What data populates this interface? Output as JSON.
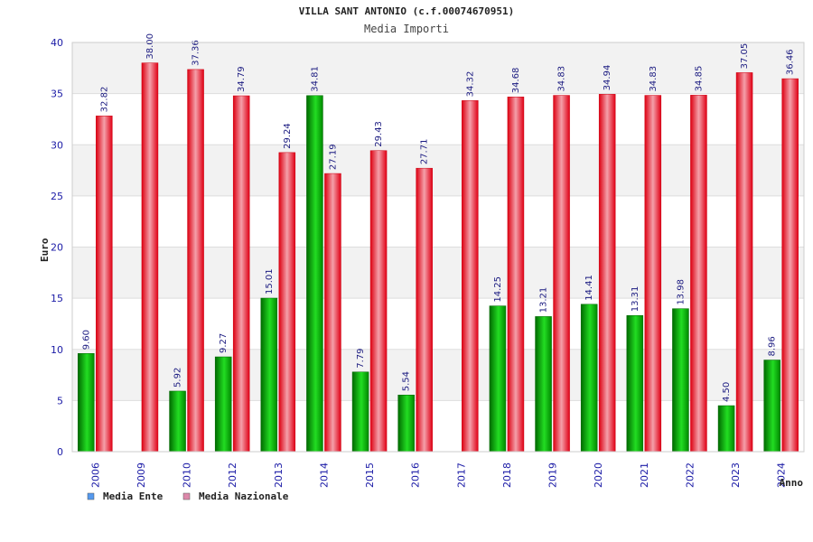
{
  "chart_data": {
    "type": "bar",
    "title": "VILLA SANT ANTONIO (c.f.00074670951)",
    "subtitle": "Media Importi",
    "xlabel": "Anno",
    "ylabel": "Euro",
    "ylim": [
      0,
      40
    ],
    "yticks": [
      0,
      5,
      10,
      15,
      20,
      25,
      30,
      35,
      40
    ],
    "grid": true,
    "legend_position": "bottom-left",
    "categories": [
      "2006",
      "2009",
      "2010",
      "2012",
      "2013",
      "2014",
      "2015",
      "2016",
      "2017",
      "2018",
      "2019",
      "2020",
      "2021",
      "2022",
      "2023",
      "2024"
    ],
    "series": [
      {
        "name": "Media Ente",
        "color": "#00b000",
        "legend_color": "#5599ee",
        "values": [
          9.6,
          null,
          5.92,
          9.27,
          15.01,
          34.81,
          7.79,
          5.54,
          null,
          14.25,
          13.21,
          14.41,
          13.31,
          13.98,
          4.5,
          8.96
        ],
        "labels": [
          "9.60",
          "",
          "5.92",
          "9.27",
          "15.01",
          "34.81",
          "7.79",
          "5.54",
          "",
          "14.25",
          "13.21",
          "14.41",
          "13.31",
          "13.98",
          "4.50",
          "8.96"
        ]
      },
      {
        "name": "Media Nazionale",
        "color": "#ee1122",
        "legend_color": "#dd88aa",
        "values": [
          32.82,
          38.0,
          37.36,
          34.79,
          29.24,
          27.19,
          29.43,
          27.71,
          34.32,
          34.68,
          34.83,
          34.94,
          34.83,
          34.85,
          37.05,
          36.46
        ],
        "labels": [
          "32.82",
          "38.00",
          "37.36",
          "34.79",
          "29.24",
          "27.19",
          "29.43",
          "27.71",
          "34.32",
          "34.68",
          "34.83",
          "34.94",
          "34.83",
          "34.85",
          "37.05",
          "36.46"
        ]
      }
    ]
  }
}
